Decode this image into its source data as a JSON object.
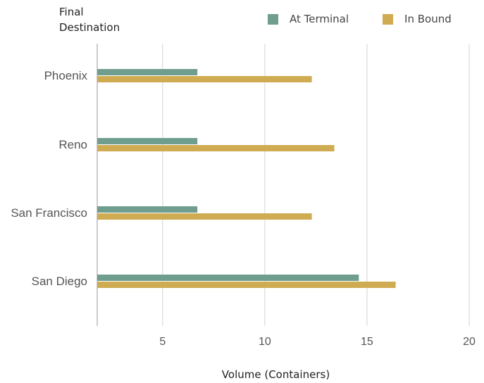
{
  "chart_data": {
    "type": "bar",
    "orientation": "horizontal",
    "ylabel": "Final\nDestination",
    "xlabel": "Volume (Containers)",
    "categories": [
      "Phoenix",
      "Reno",
      "San Francisco",
      "San Diego"
    ],
    "series": [
      {
        "name": "At Terminal",
        "color": "#6f9e8e",
        "values": [
          6.7,
          6.7,
          6.7,
          14.6
        ]
      },
      {
        "name": "In Bound",
        "color": "#cfab52",
        "values": [
          12.3,
          13.4,
          12.3,
          16.4
        ]
      }
    ],
    "xlim": [
      1.8,
      20
    ],
    "xticks": [
      5,
      10,
      15,
      20
    ],
    "grid": true,
    "legend_position": "top-right"
  }
}
